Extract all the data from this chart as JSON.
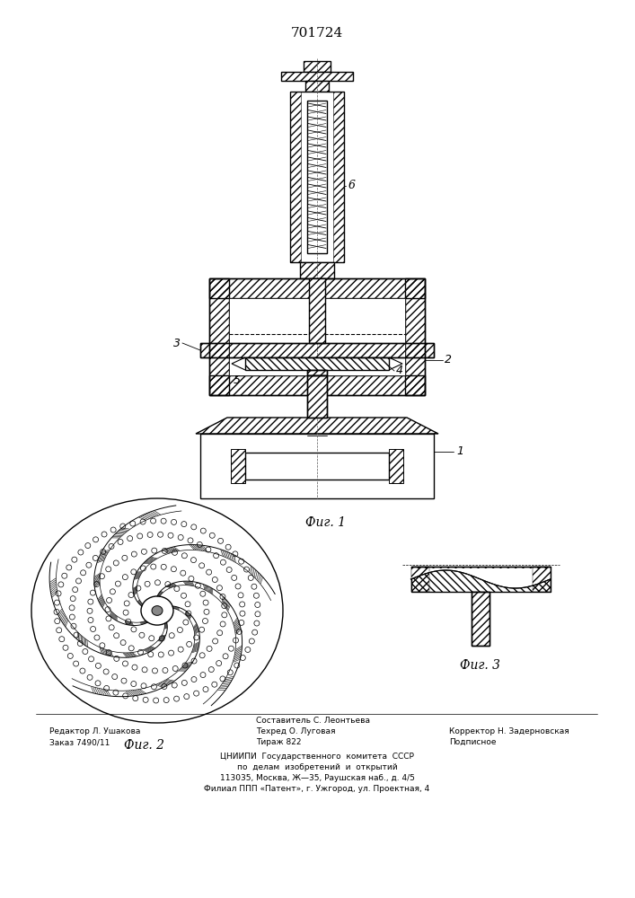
{
  "patent_number": "701724",
  "fig1_caption": "Фиг. 1",
  "fig2_caption": "Фиг. 2",
  "fig3_caption": "Фиг. 3",
  "footer_line1_left": "Редактор Л. Ушакова",
  "footer_line2_left": "Заказ 7490/11",
  "footer_line1_center": "Составитель С. Леонтьева",
  "footer_line2_center": "Техред О. Луговая",
  "footer_line3_center": "Тираж 822",
  "footer_line2_right": "Корректор Н. Задерновская",
  "footer_line3_right": "Подписное",
  "footer_center1": "ЦНИИПИ  Государственного  комитета  СССР",
  "footer_center2": "по  делам  изобретений  и  открытий",
  "footer_center3": "113035, Москва, Ж—35, Раушская наб., д. 4/5",
  "footer_center4": "Филиал ППП «Патент», г. Ужгород, ул. Проектная, 4",
  "bg_color": "#ffffff",
  "line_color": "#000000"
}
